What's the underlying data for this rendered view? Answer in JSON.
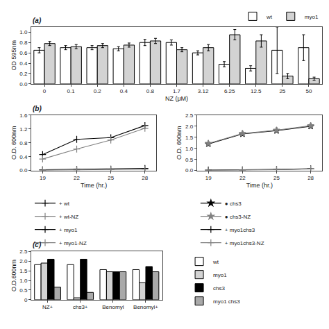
{
  "chart_data": [
    {
      "type": "bar",
      "title": "(a)",
      "xlabel": "NZ (μM)",
      "ylabel": "OD 595nm",
      "categories": [
        "0",
        "0.1",
        "0.2",
        "0.4",
        "0.8",
        "1.7",
        "3.12",
        "6.25",
        "12.5",
        "25",
        "50"
      ],
      "series": [
        {
          "name": "wt",
          "color": "white",
          "values": [
            0.65,
            0.7,
            0.7,
            0.68,
            0.8,
            0.8,
            0.6,
            0.38,
            0.3,
            0.65,
            0.7
          ],
          "errors": [
            0.05,
            0.04,
            0.04,
            0.04,
            0.06,
            0.05,
            0.04,
            0.05,
            0.05,
            0.45,
            0.25
          ]
        },
        {
          "name": "myo1",
          "color": "lightgray",
          "values": [
            0.78,
            0.72,
            0.74,
            0.75,
            0.83,
            0.66,
            0.7,
            0.95,
            0.83,
            0.15,
            0.1
          ],
          "errors": [
            0.04,
            0.04,
            0.04,
            0.04,
            0.05,
            0.04,
            0.06,
            0.1,
            0.12,
            0.05,
            0.03
          ]
        }
      ],
      "ylim": [
        0,
        1.1
      ],
      "yticks": [
        {
          "value": 0,
          "label": "0.0"
        },
        0.2,
        0.4,
        0.6,
        0.8,
        {
          "value": 1.0,
          "label": "1.0"
        }
      ],
      "grid": false,
      "legend": "top"
    },
    {
      "type": "line",
      "title": "(b)",
      "xlabel": "Time (hr.)",
      "ylabel": "O.D. 600nm",
      "x": [
        19,
        22,
        25,
        28
      ],
      "series": [
        {
          "name": "+ wt",
          "color": "black",
          "marker": "plus",
          "values": [
            0.46,
            0.9,
            0.95,
            1.3
          ]
        },
        {
          "name": "+ wt-NZ",
          "color": "gray",
          "marker": "plus",
          "values": [
            0.33,
            0.62,
            0.88,
            1.22
          ]
        },
        {
          "name": "+ myo1",
          "color": "black",
          "marker": "plus",
          "values": [
            0.02,
            0.03,
            0.04,
            0.06
          ]
        },
        {
          "name": "+ myo1-NZ",
          "color": "gray",
          "marker": "plus",
          "values": [
            0.01,
            0.02,
            0.03,
            0.04
          ]
        }
      ],
      "xlim": [
        18,
        29
      ],
      "xticks": [
        19,
        22,
        25,
        28
      ],
      "ylim": [
        0,
        1.6
      ],
      "yticks": [
        {
          "value": 0,
          "label": "0.0"
        },
        0.4,
        0.8,
        1.2,
        1.6
      ],
      "grid": false,
      "legend": "bottom"
    },
    {
      "type": "line",
      "xlabel": "Time (hr.)",
      "ylabel": "O.D. 600nm",
      "x": [
        19,
        22,
        25,
        28
      ],
      "series": [
        {
          "name": "● chs3",
          "color": "black",
          "marker": "star",
          "values": [
            1.2,
            1.65,
            1.8,
            2.0
          ]
        },
        {
          "name": "● chs3-NZ",
          "color": "gray",
          "marker": "star",
          "values": [
            1.22,
            1.67,
            1.82,
            2.02
          ]
        },
        {
          "name": "+ myo1chs3",
          "color": "black",
          "marker": "plus",
          "values": [
            0.02,
            0.03,
            0.05,
            0.08
          ]
        },
        {
          "name": "+ myo1chs3-NZ",
          "color": "gray",
          "marker": "plus",
          "values": [
            0.01,
            0.02,
            0.04,
            0.07
          ]
        }
      ],
      "xlim": [
        18,
        29
      ],
      "xticks": [
        19,
        22,
        25,
        28
      ],
      "ylim": [
        0,
        2.5
      ],
      "yticks": [
        {
          "value": 0,
          "label": "0.0"
        },
        0.5,
        {
          "value": 1.0,
          "label": "1.0"
        },
        1.5,
        {
          "value": 2.0,
          "label": "2.0"
        },
        2.5
      ],
      "grid": false,
      "legend": "bottom"
    },
    {
      "type": "bar",
      "title": "(c)",
      "ylabel": "O.D.600nm",
      "categories": [
        "NZ+",
        "chs3+",
        "Benomyl",
        "Benomyl+"
      ],
      "series": [
        {
          "name": "wt",
          "color": "white",
          "values": [
            1.82,
            1.82,
            1.56,
            1.56
          ]
        },
        {
          "name": "myo1",
          "color": "lightgray",
          "values": [
            1.9,
            0.1,
            1.45,
            0.88
          ]
        },
        {
          "name": "chs3",
          "color": "black",
          "values": [
            2.1,
            2.1,
            1.45,
            1.72
          ]
        },
        {
          "name": "myo1 chs3",
          "color": "darkgray",
          "values": [
            0.65,
            0.38,
            1.45,
            1.45
          ]
        }
      ],
      "ylim": [
        0,
        2.5
      ],
      "yticks": [
        0,
        0.5,
        {
          "value": 1.0,
          "label": "1.0"
        },
        1.5,
        {
          "value": 2.0,
          "label": "2.0"
        },
        2.5
      ],
      "grid": false,
      "legend": "right"
    }
  ]
}
